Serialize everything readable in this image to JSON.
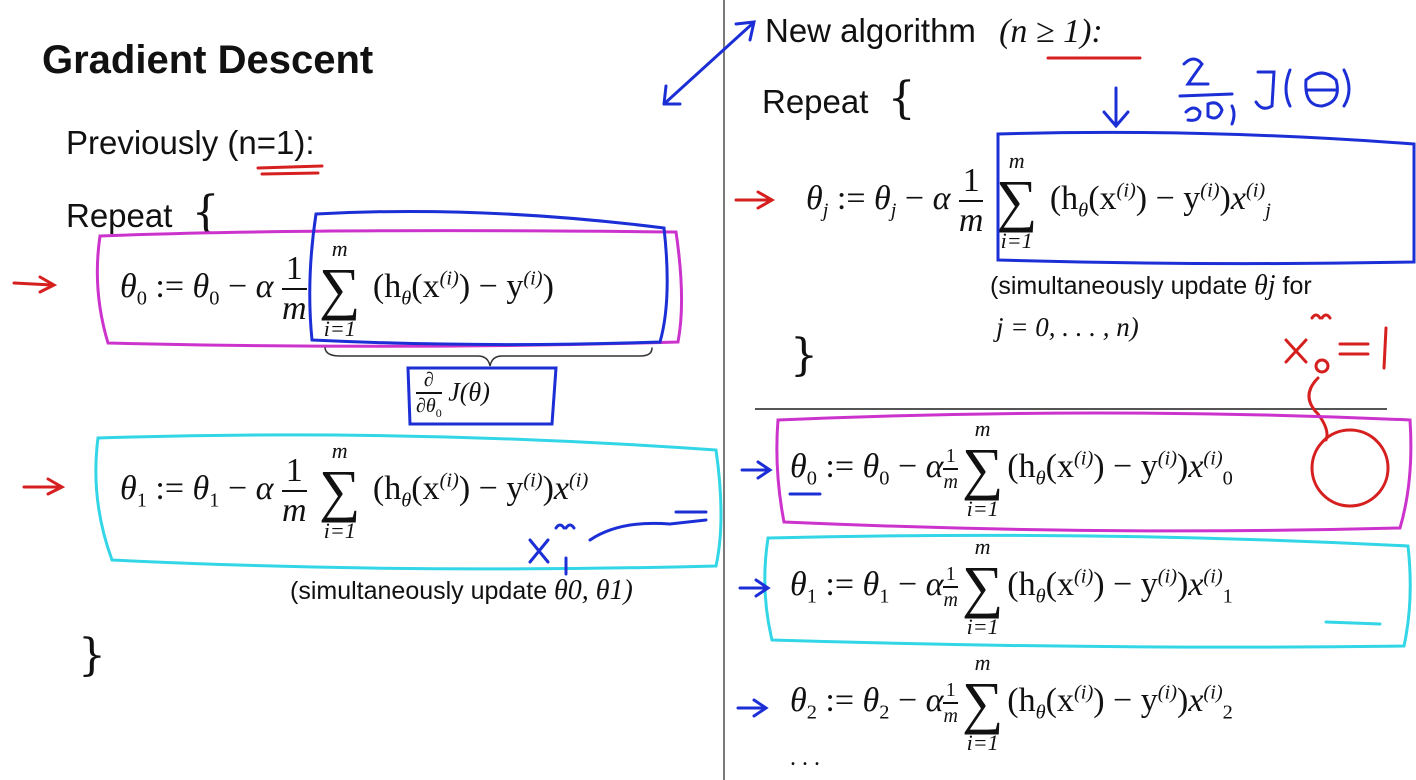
{
  "left": {
    "title": "Gradient Descent",
    "previously": "Previously (n=1):",
    "repeat": "Repeat",
    "open_brace": "{",
    "close_brace": "}",
    "eq0_lhs": "θ",
    "eq0_sub": "0",
    "eq1_sub": "1",
    "assign": ":=",
    "minus": "−",
    "alpha": "α",
    "one": "1",
    "m": "m",
    "sum_top": "m",
    "sum_bot": "i=1",
    "sum_symbol": "∑",
    "term0": "(h",
    "h_sub": "θ",
    "term_x": "(x",
    "sup_i": "(i)",
    "term_mid": ") − y",
    "term_close": ")",
    "x_tail": "x",
    "brace_label_num": "∂",
    "brace_label_den": "∂θ",
    "brace_label_den_sub": "0",
    "brace_label_J": "J(θ)",
    "simul_note": "(simultaneously update",
    "simul_vars": "θ0, θ1)"
  },
  "right": {
    "new_algo": "New algorithm",
    "new_algo_cond": "(n ≥ 1):",
    "repeat": "Repeat",
    "open_brace": "{",
    "close_brace": "}",
    "eq_j_sub": "j",
    "simul_note": "(simultaneously update",
    "simul_var": "θj",
    "simul_for": "for",
    "j_range": "j = 0, . . . , n)",
    "eq_rows": [
      {
        "sub": "0",
        "x_sub": "0"
      },
      {
        "sub": "1",
        "x_sub": "1"
      },
      {
        "sub": "2",
        "x_sub": "2"
      }
    ],
    "ellipsis": ". . ."
  },
  "handwriting": {
    "deriv_label": "∂/∂θj J(θ)",
    "x0_label": "x0(i) = 1",
    "x1_label": "x1(i)"
  },
  "colors": {
    "blue_ink": "#1c2fd6",
    "red_ink": "#d62020",
    "magenta_box": "#cc33cc",
    "cyan_box": "#33d6e6"
  }
}
